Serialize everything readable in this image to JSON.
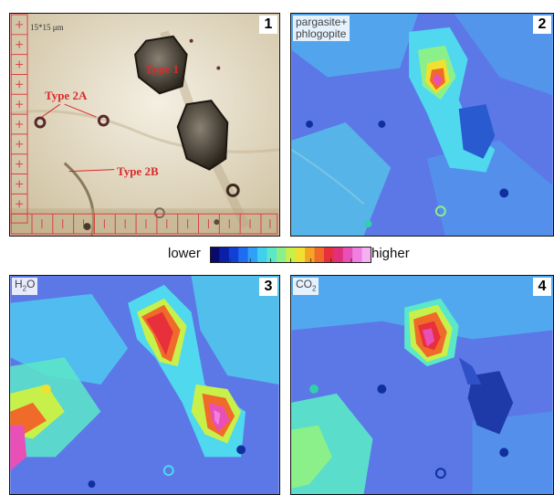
{
  "panel1": {
    "number": "1",
    "scale": "15*15 μm",
    "labels": {
      "type1": "Type 1",
      "type2a": "Type 2A",
      "type2b": "Type 2B"
    }
  },
  "panel2": {
    "number": "2",
    "label_line1": "pargasite+",
    "label_line2": "phlogopite"
  },
  "panel3": {
    "number": "3",
    "label_main": "H",
    "label_sub": "2",
    "label_tail": "O"
  },
  "panel4": {
    "number": "4",
    "label_main": "CO",
    "label_sub": "2"
  },
  "colorbar": {
    "lower_label": "lower",
    "higher_label": "higher",
    "colors": [
      "#0a0a6e",
      "#0b1fa8",
      "#1040d8",
      "#1e6cf0",
      "#2fa0f5",
      "#3fd0ee",
      "#5ae8c8",
      "#8cf08a",
      "#c8f04a",
      "#f0e030",
      "#f6a423",
      "#f06a2a",
      "#e8303c",
      "#e0307c",
      "#e850b8",
      "#f080e0",
      "#f4b0f0"
    ]
  },
  "colors": {
    "border": "#111111",
    "annotation_red": "#d92a2a",
    "map_blue": "#5c78e6",
    "map_cyan": "#4fd8ee"
  }
}
